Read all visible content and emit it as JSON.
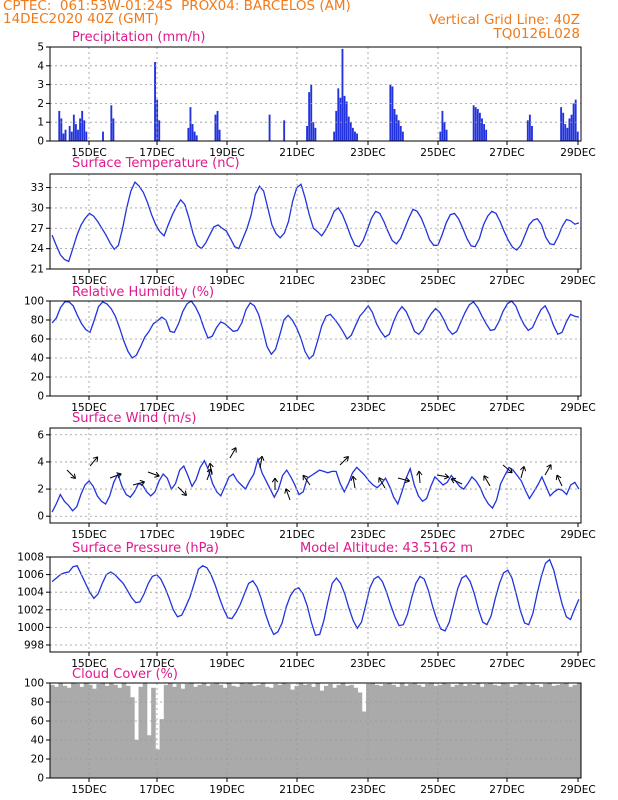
{
  "header": {
    "line1": "CPTEC:  061:53W-01:24S  PROX04: BARCELOS (AM)",
    "line2": "14DEC2020 40Z (GMT)",
    "right1": "Vertical Grid Line: 40Z",
    "right2": "TQ0126L028"
  },
  "colors": {
    "header": "#f07a1a",
    "title": "#e0198c",
    "series": "#2233dd",
    "cloud": "#aaaaaa",
    "grid": "#999999"
  },
  "chart_data": [
    {
      "id": "precip",
      "type": "bar",
      "title": "Precipitation (mm/h)",
      "xlabels": [
        "15DEC",
        "17DEC",
        "19DEC",
        "21DEC",
        "23DEC",
        "25DEC",
        "27DEC",
        "29DEC"
      ],
      "ylim": [
        0,
        5
      ],
      "yticks": [
        0,
        1,
        2,
        3,
        4,
        5
      ],
      "values": [
        0,
        0,
        0,
        0,
        1.6,
        1.2,
        0.4,
        0.6,
        0,
        0.8,
        0.5,
        1.4,
        0.9,
        0.6,
        1.2,
        1.6,
        1.1,
        0.5,
        0,
        0,
        0,
        0,
        0,
        0,
        0,
        0.5,
        0,
        0,
        0,
        1.9,
        1.2,
        0,
        0,
        0,
        0,
        0,
        0,
        0,
        0,
        0,
        0,
        0,
        0,
        0,
        0,
        0,
        0,
        0,
        0,
        0,
        4.2,
        2.2,
        1.1,
        0,
        0,
        0,
        0,
        0,
        0,
        0,
        0,
        0,
        0,
        0,
        0,
        0,
        0.7,
        1.8,
        0.9,
        0.5,
        0.3,
        0,
        0,
        0,
        0,
        0,
        0,
        0,
        0,
        1.4,
        1.6,
        0.6,
        0,
        0,
        0,
        0,
        0,
        0,
        0,
        0,
        0,
        0,
        0,
        0,
        0,
        0,
        0,
        0,
        0,
        0,
        0,
        0,
        0,
        0,
        0,
        1.4,
        0,
        0,
        0,
        0,
        0,
        0,
        1.1,
        0,
        0,
        0,
        0,
        0,
        0,
        0,
        0,
        0,
        0,
        0.8,
        2.6,
        3.0,
        1.0,
        0.7,
        0,
        0,
        0,
        0,
        0,
        0,
        0,
        0,
        0.5,
        1.6,
        2.8,
        2.3,
        4.9,
        2.4,
        2.1,
        1.3,
        1.0,
        0.7,
        0.5,
        0.4,
        0,
        0,
        0,
        0,
        0,
        0,
        0,
        0,
        0,
        0,
        0,
        0,
        0,
        0,
        0,
        3.0,
        2.9,
        1.7,
        1.4,
        1.1,
        0.8,
        0.5,
        0,
        0,
        0,
        0,
        0,
        0,
        0,
        0,
        0,
        0,
        0,
        0,
        0,
        0,
        0,
        0,
        0,
        0.5,
        1.6,
        1.0,
        0.6,
        0,
        0,
        0,
        0,
        0,
        0,
        0,
        0,
        0,
        0,
        0,
        0,
        1.9,
        1.8,
        1.7,
        1.5,
        1.2,
        0.9,
        0.6,
        0,
        0,
        0,
        0,
        0,
        0,
        0,
        0,
        0,
        0,
        0,
        0,
        0,
        0,
        0,
        0,
        0,
        0,
        0,
        1.1,
        1.4,
        0.8,
        0,
        0,
        0,
        0,
        0,
        0,
        0,
        0,
        0,
        0,
        0,
        0,
        0,
        1.8,
        1.5,
        0.9,
        0.7,
        1.2,
        1.4,
        2.0,
        2.2,
        0.5,
        0
      ]
    },
    {
      "id": "temp",
      "type": "line",
      "title": "Surface Temperature (nC)",
      "xlabels": [
        "15DEC",
        "17DEC",
        "19DEC",
        "21DEC",
        "23DEC",
        "25DEC",
        "27DEC",
        "29DEC"
      ],
      "ylim": [
        21,
        35
      ],
      "yticks": [
        21,
        24,
        27,
        30,
        33
      ],
      "values": [
        26.0,
        24.5,
        23.1,
        22.4,
        22.1,
        24.0,
        26.0,
        27.5,
        28.5,
        29.2,
        28.8,
        28.0,
        27.0,
        26.0,
        24.8,
        23.9,
        24.5,
        27.0,
        30.0,
        32.5,
        33.8,
        33.2,
        32.3,
        30.8,
        29.0,
        27.5,
        26.5,
        25.9,
        27.5,
        29.0,
        30.2,
        31.2,
        30.5,
        28.5,
        26.2,
        24.5,
        24.0,
        24.8,
        26.0,
        27.2,
        27.5,
        27.0,
        26.6,
        25.5,
        24.3,
        24.0,
        25.5,
        27.0,
        29.0,
        32.0,
        33.2,
        32.5,
        30.0,
        27.5,
        26.2,
        25.6,
        26.3,
        28.0,
        31.0,
        33.0,
        33.5,
        31.5,
        29.0,
        27.0,
        26.5,
        25.9,
        26.8,
        28.0,
        29.5,
        30.0,
        29.0,
        27.5,
        25.8,
        24.5,
        24.3,
        25.2,
        26.8,
        28.5,
        29.5,
        29.2,
        28.0,
        26.5,
        25.2,
        24.7,
        25.5,
        27.0,
        28.5,
        29.8,
        29.5,
        28.5,
        27.0,
        25.3,
        24.5,
        24.5,
        26.0,
        27.8,
        29.0,
        29.2,
        28.4,
        27.0,
        25.5,
        24.4,
        24.3,
        25.5,
        27.5,
        28.8,
        29.5,
        29.2,
        28.0,
        26.5,
        25.2,
        24.2,
        23.8,
        24.5,
        26.0,
        27.5,
        28.2,
        28.4,
        27.5,
        25.7,
        24.7,
        24.6,
        25.8,
        27.3,
        28.3,
        28.1,
        27.6,
        27.8
      ]
    },
    {
      "id": "rh",
      "type": "line",
      "title": "Relative Humidity (%)",
      "xlabels": [
        "15DEC",
        "17DEC",
        "19DEC",
        "21DEC",
        "23DEC",
        "25DEC",
        "27DEC",
        "29DEC"
      ],
      "ylim": [
        0,
        100
      ],
      "yticks": [
        0,
        20,
        40,
        60,
        80,
        100
      ],
      "values": [
        77,
        82,
        93,
        99,
        99,
        95,
        85,
        76,
        70,
        67,
        80,
        94,
        99,
        97,
        92,
        84,
        72,
        58,
        47,
        40,
        43,
        52,
        62,
        68,
        76,
        79,
        83,
        80,
        68,
        67,
        76,
        89,
        97,
        100,
        94,
        85,
        72,
        61,
        63,
        72,
        78,
        76,
        72,
        68,
        69,
        77,
        91,
        98,
        95,
        86,
        70,
        52,
        44,
        49,
        64,
        80,
        85,
        80,
        72,
        61,
        47,
        39,
        43,
        58,
        74,
        84,
        86,
        81,
        75,
        68,
        60,
        64,
        74,
        84,
        89,
        95,
        88,
        76,
        68,
        62,
        65,
        78,
        88,
        94,
        89,
        79,
        68,
        65,
        70,
        80,
        87,
        92,
        88,
        80,
        70,
        65,
        68,
        78,
        88,
        96,
        99,
        93,
        84,
        76,
        69,
        70,
        78,
        89,
        97,
        100,
        95,
        84,
        75,
        69,
        72,
        82,
        91,
        95,
        86,
        74,
        65,
        67,
        78,
        86,
        84,
        83
      ]
    },
    {
      "id": "wind",
      "type": "line",
      "title": "Surface Wind (m/s)",
      "xlabels": [
        "15DEC",
        "17DEC",
        "19DEC",
        "21DEC",
        "23DEC",
        "25DEC",
        "27DEC",
        "29DEC"
      ],
      "ylim": [
        -0.5,
        6.5
      ],
      "yticks": [
        0,
        2,
        4,
        6
      ],
      "values": [
        0.3,
        0.9,
        1.6,
        1.1,
        0.8,
        0.4,
        0.7,
        1.6,
        2.3,
        2.6,
        2.2,
        1.5,
        1.1,
        0.9,
        1.5,
        2.5,
        3.1,
        2.2,
        1.6,
        1.4,
        1.8,
        2.4,
        2.3,
        1.8,
        1.5,
        1.8,
        2.6,
        3.1,
        2.8,
        2.0,
        2.4,
        3.4,
        3.7,
        3.0,
        2.2,
        2.7,
        3.6,
        4.1,
        3.4,
        2.4,
        1.8,
        1.5,
        2.2,
        2.9,
        3.1,
        2.6,
        2.3,
        2.0,
        2.6,
        3.1,
        4.2,
        3.2,
        2.6,
        2.0,
        1.4,
        2.0,
        3.0,
        3.4,
        2.9,
        2.3,
        1.6,
        1.8,
        2.8,
        3.0,
        3.2,
        3.4,
        3.3,
        3.2,
        3.3,
        3.3,
        2.4,
        1.8,
        2.4,
        3.2,
        3.6,
        3.3,
        3.0,
        2.6,
        2.3,
        2.1,
        2.4,
        2.8,
        2.2,
        1.4,
        0.9,
        1.8,
        2.8,
        3.5,
        2.3,
        1.5,
        1.1,
        1.3,
        2.2,
        2.9,
        2.6,
        2.3,
        2.5,
        3.0,
        2.6,
        2.2,
        2.0,
        2.4,
        2.9,
        2.6,
        2.1,
        1.4,
        0.9,
        0.6,
        1.2,
        2.4,
        3.0,
        3.6,
        3.4,
        3.0,
        2.6,
        1.9,
        1.3,
        1.8,
        2.3,
        2.9,
        2.2,
        1.5,
        1.8,
        2.0,
        1.9,
        1.6,
        2.3,
        2.5,
        2.0
      ]
    },
    {
      "id": "pres",
      "type": "line",
      "title": "Surface Pressure (hPa)",
      "annotation": "Model Altitude: 43.5162 m",
      "xlabels": [
        "15DEC",
        "17DEC",
        "19DEC",
        "21DEC",
        "23DEC",
        "25DEC",
        "27DEC",
        "29DEC"
      ],
      "ylim": [
        997.2,
        1008
      ],
      "yticks": [
        998,
        1000,
        1002,
        1004,
        1006,
        1008
      ],
      "values": [
        1005.2,
        1005.6,
        1006.0,
        1006.2,
        1006.3,
        1006.9,
        1007.0,
        1006.0,
        1005.0,
        1004.0,
        1003.3,
        1003.8,
        1005.0,
        1006.0,
        1006.3,
        1006.0,
        1005.5,
        1005.0,
        1004.2,
        1003.4,
        1002.8,
        1002.9,
        1003.8,
        1005.0,
        1005.8,
        1006.0,
        1005.5,
        1004.5,
        1003.3,
        1002.0,
        1001.2,
        1001.4,
        1002.4,
        1003.5,
        1005.0,
        1006.6,
        1007.0,
        1006.8,
        1006.0,
        1004.8,
        1003.4,
        1002.1,
        1001.1,
        1001.0,
        1001.7,
        1002.6,
        1003.8,
        1005.0,
        1005.3,
        1004.6,
        1003.3,
        1001.6,
        1000.2,
        999.2,
        999.5,
        1000.5,
        1002.3,
        1003.6,
        1004.3,
        1004.5,
        1003.8,
        1002.5,
        1000.6,
        999.1,
        999.2,
        1000.8,
        1003.0,
        1005.0,
        1005.6,
        1005.0,
        1003.8,
        1002.2,
        1000.8,
        999.9,
        1000.6,
        1002.5,
        1004.5,
        1005.5,
        1005.8,
        1005.2,
        1004.0,
        1002.5,
        1001.2,
        1000.2,
        1000.3,
        1001.5,
        1003.4,
        1005.0,
        1005.8,
        1005.5,
        1004.2,
        1002.4,
        1000.9,
        999.8,
        999.6,
        1000.6,
        1002.5,
        1004.4,
        1005.6,
        1005.9,
        1005.2,
        1003.8,
        1002.0,
        1000.6,
        1000.3,
        1001.3,
        1003.3,
        1005.0,
        1006.2,
        1006.5,
        1005.6,
        1003.8,
        1001.9,
        1000.5,
        1000.3,
        1001.6,
        1003.8,
        1005.8,
        1007.3,
        1007.7,
        1006.5,
        1004.5,
        1002.6,
        1001.2,
        1000.9,
        1002.1,
        1003.2
      ]
    },
    {
      "id": "cloud",
      "type": "area",
      "title": "Cloud Cover (%)",
      "xlabels": [
        "15DEC",
        "17DEC",
        "19DEC",
        "21DEC",
        "23DEC",
        "25DEC",
        "27DEC",
        "29DEC"
      ],
      "ylim": [
        0,
        100
      ],
      "yticks": [
        0,
        20,
        40,
        60,
        80,
        100
      ],
      "values": [
        98,
        96,
        100,
        97,
        95,
        100,
        99,
        96,
        100,
        98,
        94,
        99,
        100,
        97,
        100,
        98,
        95,
        100,
        97,
        85,
        40,
        96,
        100,
        45,
        95,
        30,
        62,
        98,
        100,
        96,
        99,
        94,
        99,
        100,
        96,
        98,
        100,
        97,
        99,
        100,
        98,
        95,
        100,
        97,
        96,
        100,
        99,
        100,
        97,
        98,
        100,
        96,
        95,
        99,
        98,
        100,
        99,
        93,
        97,
        100,
        98,
        99,
        96,
        100,
        92,
        97,
        99,
        95,
        98,
        100,
        97,
        98,
        95,
        90,
        70,
        99,
        100,
        98,
        97,
        99,
        100,
        98,
        96,
        100,
        97,
        99,
        100,
        98,
        96,
        99,
        100,
        97,
        98,
        100,
        99,
        96,
        98,
        100,
        97,
        99,
        98,
        100,
        96,
        99,
        100,
        98,
        97,
        100,
        99,
        96,
        98,
        100,
        99,
        97,
        100,
        98,
        96,
        99,
        100,
        97,
        98,
        99,
        100,
        96,
        98,
        100
      ]
    }
  ]
}
